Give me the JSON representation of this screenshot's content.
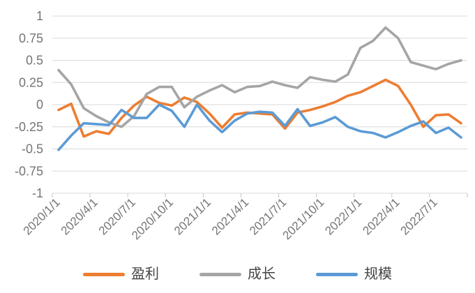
{
  "chart_data": {
    "type": "line",
    "title": "",
    "categories": [
      "2020/1/1",
      "2020/2/1",
      "2020/3/1",
      "2020/4/1",
      "2020/5/1",
      "2020/6/1",
      "2020/7/1",
      "2020/8/1",
      "2020/9/1",
      "2020/10/1",
      "2020/11/1",
      "2020/12/1",
      "2021/1/1",
      "2021/2/1",
      "2021/3/1",
      "2021/4/1",
      "2021/5/1",
      "2021/6/1",
      "2021/7/1",
      "2021/8/1",
      "2021/9/1",
      "2021/10/1",
      "2021/11/1",
      "2021/12/1",
      "2022/1/1",
      "2022/2/1",
      "2022/3/1",
      "2022/4/1",
      "2022/5/1",
      "2022/6/1",
      "2022/7/1",
      "2022/8/1",
      "2022/9/1"
    ],
    "series": [
      {
        "id": "profit",
        "name": "盈利",
        "color": "#ED7D31",
        "values": [
          -0.06,
          0.01,
          -0.36,
          -0.3,
          -0.33,
          -0.15,
          -0.01,
          0.09,
          0.02,
          -0.01,
          0.08,
          0.03,
          -0.1,
          -0.26,
          -0.11,
          -0.09,
          -0.1,
          -0.11,
          -0.27,
          -0.09,
          -0.06,
          -0.02,
          0.03,
          0.1,
          0.14,
          0.21,
          0.28,
          0.21,
          0.0,
          -0.25,
          -0.12,
          -0.11,
          -0.21
        ]
      },
      {
        "id": "growth",
        "name": "成长",
        "color": "#A5A5A5",
        "values": [
          0.39,
          0.23,
          -0.04,
          -0.13,
          -0.2,
          -0.25,
          -0.13,
          0.12,
          0.2,
          0.2,
          -0.03,
          0.09,
          0.16,
          0.22,
          0.14,
          0.2,
          0.21,
          0.26,
          0.22,
          0.19,
          0.31,
          0.28,
          0.26,
          0.34,
          0.64,
          0.72,
          0.87,
          0.75,
          0.48,
          0.44,
          0.4,
          0.46,
          0.5
        ]
      },
      {
        "id": "scale",
        "name": "规模",
        "color": "#5B9BD5",
        "values": [
          -0.51,
          -0.35,
          -0.21,
          -0.22,
          -0.23,
          -0.06,
          -0.15,
          -0.15,
          0.0,
          -0.07,
          -0.25,
          0.0,
          -0.18,
          -0.31,
          -0.18,
          -0.1,
          -0.08,
          -0.09,
          -0.24,
          -0.05,
          -0.24,
          -0.2,
          -0.14,
          -0.25,
          -0.3,
          -0.32,
          -0.37,
          -0.31,
          -0.24,
          -0.19,
          -0.32,
          -0.26,
          -0.37
        ]
      }
    ],
    "y_axis": {
      "min": -1,
      "max": 1,
      "step": 0.25,
      "tick_labels": [
        "1",
        "0.75",
        "0.5",
        "0.25",
        "0",
        "-0.25",
        "-0.5",
        "-0.75",
        "-1"
      ]
    },
    "x_tick_labels": [
      "2020/1/1",
      "2020/4/1",
      "2020/7/1",
      "2020/10/1",
      "2021/1/1",
      "2021/4/1",
      "2021/7/1",
      "2021/10/1",
      "2022/1/1",
      "2022/4/1",
      "2022/7/1"
    ],
    "x_label_every_n_months": 3,
    "grid": true,
    "legend_position": "bottom",
    "style": {
      "gridline_color": "#D9D9D9",
      "tick_color": "#C6C6C6",
      "axis_label_color": "#757575",
      "background": "#FFFFFF"
    }
  },
  "legend": {
    "items": [
      {
        "label": "盈利"
      },
      {
        "label": "成长"
      },
      {
        "label": "规模"
      }
    ]
  }
}
